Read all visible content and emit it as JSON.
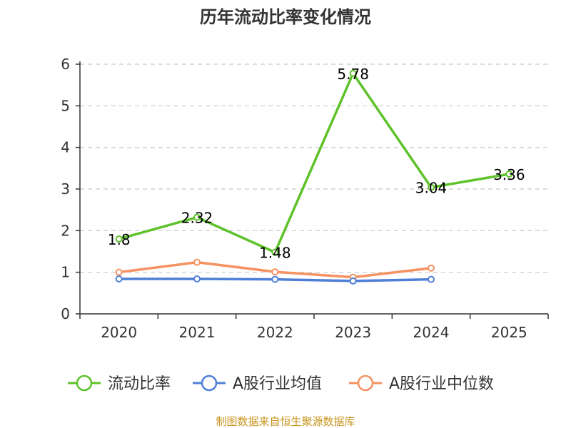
{
  "chart_data": {
    "type": "line",
    "title": "历年流动比率变化情况",
    "categories": [
      "2020",
      "2021",
      "2022",
      "2023",
      "2024",
      "2025"
    ],
    "ylim": [
      0,
      6
    ],
    "yticks": [
      "0",
      "1",
      "2",
      "3",
      "4",
      "5",
      "6"
    ],
    "grid": true,
    "legend_position": "bottom",
    "series": [
      {
        "name": "流动比率",
        "color": "#5ec22a",
        "values": [
          1.8,
          2.32,
          1.48,
          5.78,
          3.04,
          3.36
        ],
        "labels": [
          "1.8",
          "2.32",
          "1.48",
          "5.78",
          "3.04",
          "3.36"
        ]
      },
      {
        "name": "A股行业均值",
        "color": "#4f7fd6",
        "values": [
          0.84,
          0.84,
          0.83,
          0.79,
          0.83,
          null
        ]
      },
      {
        "name": "A股行业中位数",
        "color": "#f59262",
        "values": [
          1.0,
          1.24,
          1.01,
          0.88,
          1.1,
          null
        ]
      }
    ]
  },
  "source": "制图数据来自恒生聚源数据库"
}
